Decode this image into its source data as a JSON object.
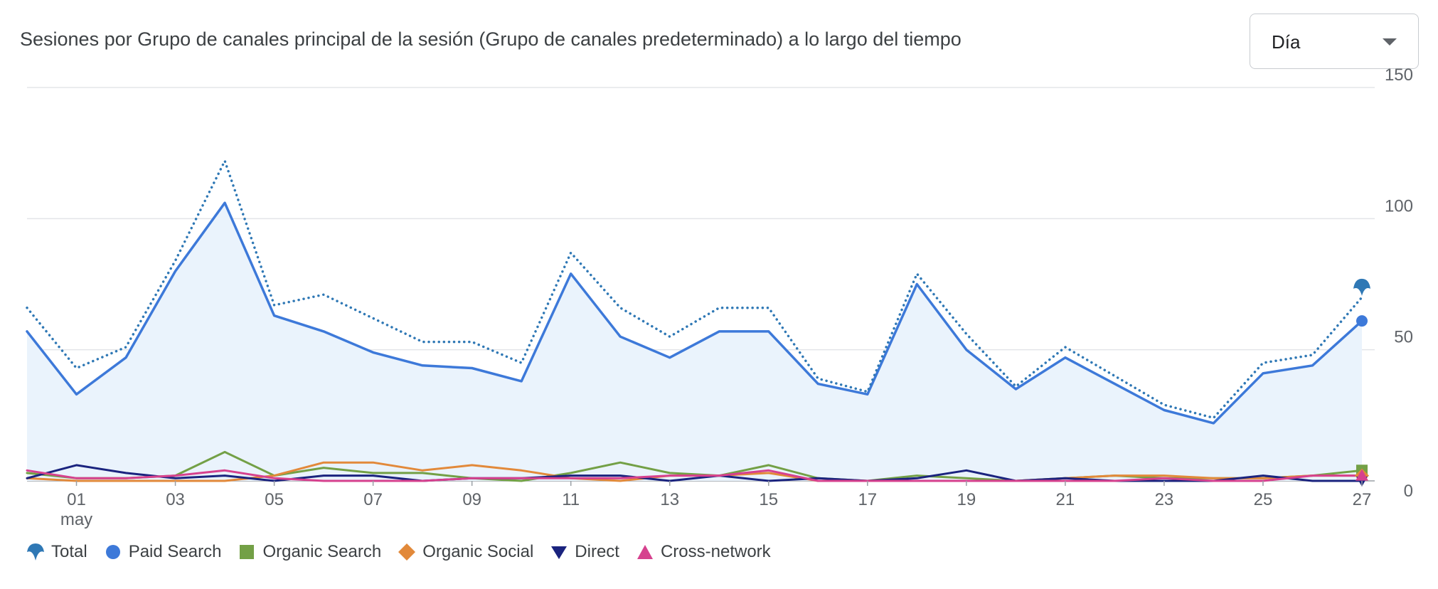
{
  "header": {
    "title": "Sesiones por Grupo de canales principal de la sesión (Grupo de canales predeterminado) a lo largo del tiempo"
  },
  "granularity_select": {
    "value": "Día"
  },
  "chart_data": {
    "type": "line",
    "title": "Sesiones por Grupo de canales principal de la sesión (Grupo de canales predeterminado) a lo largo del tiempo",
    "xlabel": "",
    "ylabel": "",
    "x_axis": {
      "ticks": [
        {
          "day": 1,
          "label": "01"
        },
        {
          "day": 3,
          "label": "03"
        },
        {
          "day": 5,
          "label": "05"
        },
        {
          "day": 7,
          "label": "07"
        },
        {
          "day": 9,
          "label": "09"
        },
        {
          "day": 11,
          "label": "11"
        },
        {
          "day": 13,
          "label": "13"
        },
        {
          "day": 15,
          "label": "15"
        },
        {
          "day": 17,
          "label": "17"
        },
        {
          "day": 19,
          "label": "19"
        },
        {
          "day": 21,
          "label": "21"
        },
        {
          "day": 23,
          "label": "23"
        },
        {
          "day": 25,
          "label": "25"
        },
        {
          "day": 27,
          "label": "27"
        }
      ],
      "month_label": "may"
    },
    "y_axis": {
      "ticks": [
        0,
        50,
        100,
        150
      ],
      "position": "right",
      "ylim": [
        0,
        150
      ]
    },
    "grid": true,
    "legend_position": "bottom-left",
    "x": [
      0,
      1,
      2,
      3,
      4,
      5,
      6,
      7,
      8,
      9,
      10,
      11,
      12,
      13,
      14,
      15,
      16,
      17,
      18,
      19,
      20,
      21,
      22,
      23,
      24,
      25,
      26,
      27
    ],
    "series": [
      {
        "name": "Total",
        "color": "#2f78b5",
        "style": "dotted",
        "marker": "pin",
        "values": [
          66,
          43,
          51,
          84,
          122,
          67,
          71,
          62,
          53,
          53,
          45,
          87,
          66,
          55,
          66,
          66,
          39,
          34,
          79,
          56,
          36,
          51,
          40,
          29,
          24,
          45,
          48,
          70
        ]
      },
      {
        "name": "Paid Search",
        "color": "#3d79d9",
        "style": "solid",
        "marker": "circle",
        "area": true,
        "values": [
          57,
          33,
          47,
          80,
          106,
          63,
          57,
          49,
          44,
          43,
          38,
          79,
          55,
          47,
          57,
          57,
          37,
          33,
          75,
          50,
          35,
          47,
          37,
          27,
          22,
          41,
          44,
          61
        ]
      },
      {
        "name": "Organic Search",
        "color": "#73a046",
        "style": "solid",
        "marker": "square",
        "values": [
          3,
          1,
          1,
          2,
          11,
          2,
          5,
          3,
          3,
          1,
          0,
          3,
          7,
          3,
          2,
          6,
          1,
          0,
          2,
          1,
          0,
          1,
          2,
          1,
          1,
          1,
          2,
          4
        ]
      },
      {
        "name": "Organic Social",
        "color": "#e2893a",
        "style": "solid",
        "marker": "diamond",
        "values": [
          1,
          0,
          0,
          0,
          0,
          2,
          7,
          7,
          4,
          6,
          4,
          1,
          0,
          2,
          2,
          3,
          0,
          0,
          0,
          0,
          0,
          1,
          2,
          2,
          1,
          1,
          2,
          2
        ]
      },
      {
        "name": "Direct",
        "color": "#1a237e",
        "style": "solid",
        "marker": "triangle-down",
        "values": [
          1,
          6,
          3,
          1,
          2,
          0,
          2,
          2,
          0,
          1,
          1,
          2,
          2,
          0,
          2,
          0,
          1,
          0,
          1,
          4,
          0,
          1,
          0,
          0,
          0,
          2,
          0,
          0
        ]
      },
      {
        "name": "Cross-network",
        "color": "#d6418e",
        "style": "solid",
        "marker": "triangle-up",
        "values": [
          4,
          1,
          1,
          2,
          4,
          1,
          0,
          0,
          0,
          1,
          1,
          1,
          1,
          2,
          2,
          4,
          0,
          0,
          0,
          0,
          0,
          0,
          0,
          1,
          0,
          0,
          2,
          2
        ]
      }
    ]
  },
  "legend": {
    "items": [
      {
        "label": "Total",
        "icon": "pin-icon",
        "color": "#2f78b5"
      },
      {
        "label": "Paid Search",
        "icon": "circle-icon",
        "color": "#3d79d9"
      },
      {
        "label": "Organic Search",
        "icon": "square-icon",
        "color": "#73a046"
      },
      {
        "label": "Organic Social",
        "icon": "diamond-icon",
        "color": "#e2893a"
      },
      {
        "label": "Direct",
        "icon": "triangle-down-icon",
        "color": "#1a237e"
      },
      {
        "label": "Cross-network",
        "icon": "triangle-up-icon",
        "color": "#d6418e"
      }
    ]
  }
}
